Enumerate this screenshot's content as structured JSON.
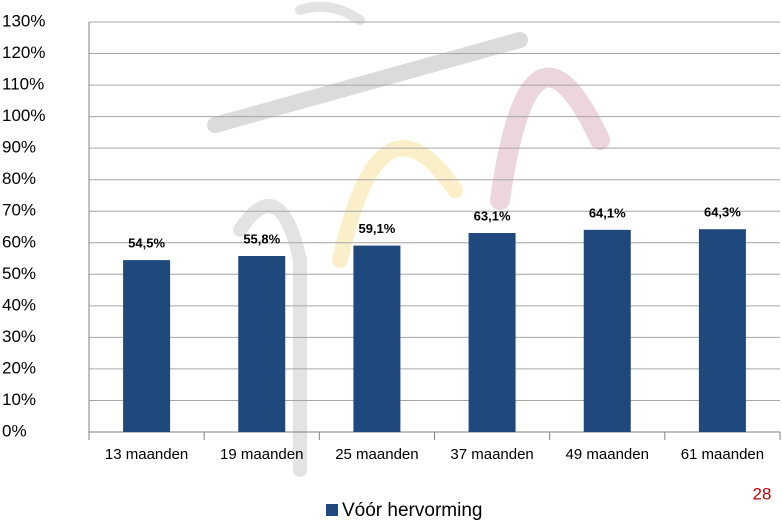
{
  "chart_data": {
    "type": "bar",
    "categories": [
      "13 maanden",
      "19 maanden",
      "25 maanden",
      "37 maanden",
      "49 maanden",
      "61 maanden"
    ],
    "series": [
      {
        "name": "Vóór hervorming",
        "color": "#1f497d",
        "values": [
          54.5,
          55.8,
          59.1,
          63.1,
          64.1,
          64.3
        ],
        "value_labels": [
          "54,5%",
          "55,8%",
          "59,1%",
          "63,1%",
          "64,1%",
          "64,3%"
        ]
      }
    ],
    "ylim": [
      0,
      130
    ],
    "yticks": [
      {
        "value": 0,
        "label": "0%"
      },
      {
        "value": 10,
        "label": "10%"
      },
      {
        "value": 20,
        "label": "20%"
      },
      {
        "value": 30,
        "label": "30%"
      },
      {
        "value": 40,
        "label": "40%"
      },
      {
        "value": 50,
        "label": "50%"
      },
      {
        "value": 60,
        "label": "60%"
      },
      {
        "value": 70,
        "label": "70%"
      },
      {
        "value": 80,
        "label": "80%"
      },
      {
        "value": 90,
        "label": "90%"
      },
      {
        "value": 100,
        "label": "100%"
      },
      {
        "value": 110,
        "label": "110%"
      },
      {
        "value": 120,
        "label": "120%"
      },
      {
        "value": 130,
        "label": "130%"
      }
    ],
    "grid": true,
    "legend": "bottom"
  },
  "page_number": "28"
}
